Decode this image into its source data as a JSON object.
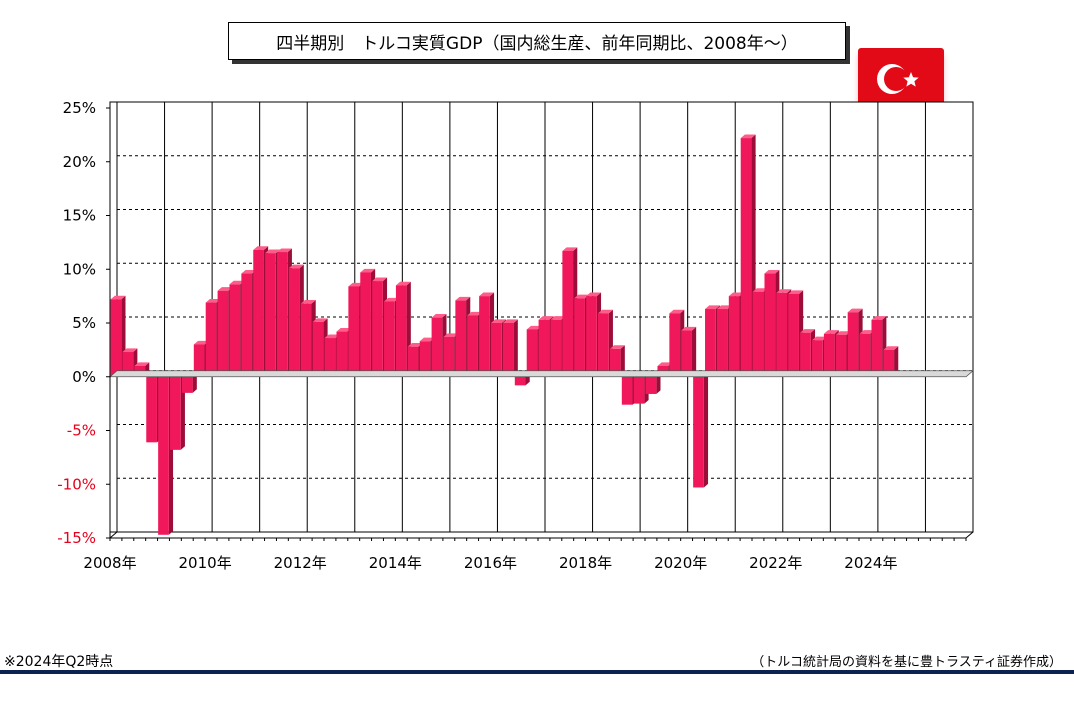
{
  "title": "四半期別　トルコ実質GDP（国内総生産、前年同期比、2008年～）",
  "flag": {
    "icon": "turkey-flag-icon",
    "color": "#e30a17"
  },
  "note_left": "※2024年Q2時点",
  "note_right": "（トルコ統計局の資料を基に豊トラスティ証券作成）",
  "colors": {
    "bar": "#f0185a",
    "bar_dark": "#9c0d3a",
    "negative_label": "#e8001c"
  },
  "chart_data": {
    "type": "bar",
    "title": "四半期別　トルコ実質GDP（国内総生産、前年同期比、2008年～）",
    "xlabel": "",
    "ylabel": "",
    "ylim": [
      -15,
      25
    ],
    "yticks": [
      25,
      20,
      15,
      10,
      5,
      0,
      -5,
      -10,
      -15
    ],
    "ytick_labels": [
      "25%",
      "20%",
      "15%",
      "10%",
      "5%",
      "0%",
      "-5%",
      "-10%",
      "-15%"
    ],
    "x_labels": [
      "2008年",
      "2010年",
      "2012年",
      "2014年",
      "2016年",
      "2018年",
      "2020年",
      "2022年",
      "2024年"
    ],
    "grid": true,
    "quarter_slots": 72,
    "values": [
      7.2,
      2.3,
      1.0,
      -6.1,
      -14.7,
      -6.8,
      -1.5,
      3.0,
      6.9,
      8.0,
      8.6,
      9.6,
      11.8,
      11.5,
      11.6,
      10.1,
      6.8,
      5.1,
      3.6,
      4.2,
      8.4,
      9.7,
      8.9,
      7.0,
      8.5,
      2.8,
      3.3,
      5.5,
      3.7,
      7.1,
      5.7,
      7.5,
      5.0,
      5.0,
      -0.8,
      4.4,
      5.3,
      5.3,
      11.7,
      7.3,
      7.5,
      5.9,
      2.6,
      -2.6,
      -2.5,
      -1.6,
      1.0,
      5.9,
      4.3,
      -10.3,
      6.3,
      6.3,
      7.5,
      22.2,
      7.9,
      9.6,
      7.8,
      7.7,
      4.1,
      3.4,
      4.0,
      3.9,
      6.0,
      4.0,
      5.3,
      2.5
    ]
  }
}
